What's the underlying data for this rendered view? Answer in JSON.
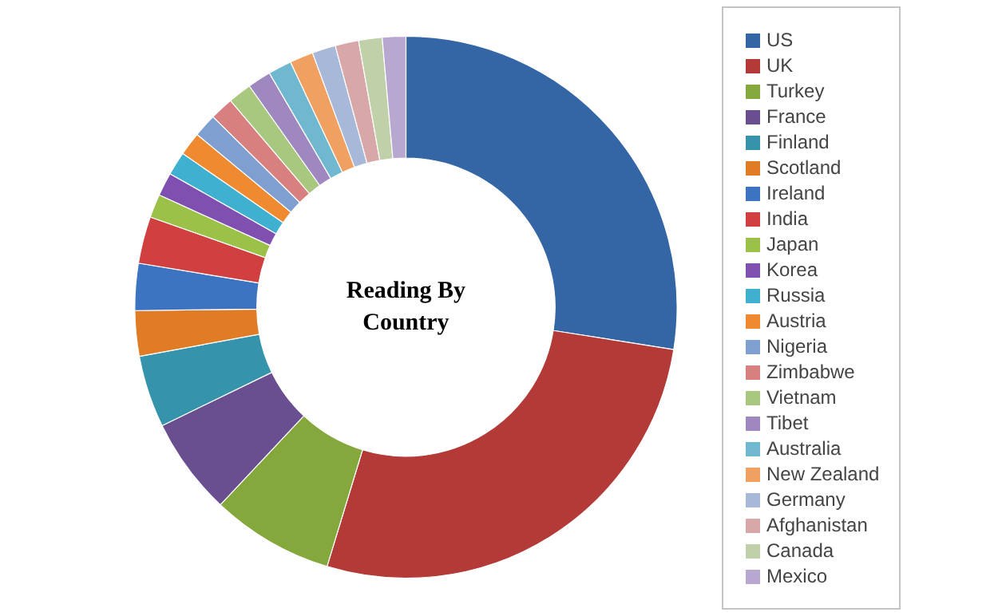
{
  "chart_data": {
    "type": "donut",
    "title": "Reading By Country",
    "legend": "right",
    "categories": [
      "US",
      "UK",
      "Turkey",
      "France",
      "Finland",
      "Scotland",
      "Ireland",
      "India",
      "Japan",
      "Korea",
      "Russia",
      "Austria",
      "Nigeria",
      "Zimbabwe",
      "Vietnam",
      "Tibet",
      "Australia",
      "New Zealand",
      "Germany",
      "Afghanistan",
      "Canada",
      "Mexico"
    ],
    "values": [
      27.5,
      27.2,
      7.3,
      5.8,
      4.3,
      2.7,
      2.8,
      2.8,
      1.4,
      1.4,
      1.4,
      1.4,
      1.4,
      1.4,
      1.4,
      1.4,
      1.4,
      1.4,
      1.4,
      1.4,
      1.4,
      1.4
    ],
    "colors": [
      "#3466a5",
      "#b33a36",
      "#84a83c",
      "#6a4f90",
      "#3593ab",
      "#e07b26",
      "#3d74c2",
      "#d04040",
      "#9cc149",
      "#8050b0",
      "#40b0d0",
      "#f08a30",
      "#7f9fd0",
      "#d88080",
      "#a8c880",
      "#9f88c0",
      "#70b8d0",
      "#f0a060",
      "#a8b8d8",
      "#d8a8a8",
      "#c0d0a8",
      "#b8a8d0"
    ]
  }
}
